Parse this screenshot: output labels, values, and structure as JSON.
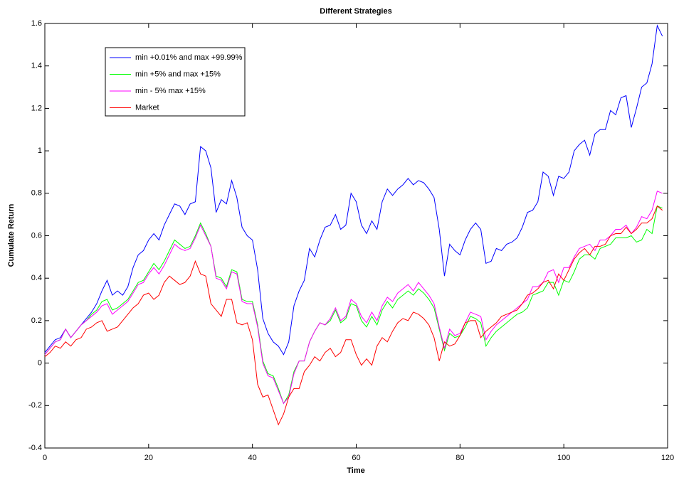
{
  "chart_data": {
    "type": "line",
    "title": "Different Strategies",
    "x_label": "Time",
    "y_label": "Cumulate Return",
    "x": [
      0,
      1,
      2,
      3,
      4,
      5,
      6,
      7,
      8,
      9,
      10,
      11,
      12,
      13,
      14,
      15,
      16,
      17,
      18,
      19,
      20,
      21,
      22,
      23,
      24,
      25,
      26,
      27,
      28,
      29,
      30,
      31,
      32,
      33,
      34,
      35,
      36,
      37,
      38,
      39,
      40,
      41,
      42,
      43,
      44,
      45,
      46,
      47,
      48,
      49,
      50,
      51,
      52,
      53,
      54,
      55,
      56,
      57,
      58,
      59,
      60,
      61,
      62,
      63,
      64,
      65,
      66,
      67,
      68,
      69,
      70,
      71,
      72,
      73,
      74,
      75,
      76,
      77,
      78,
      79,
      80,
      81,
      82,
      83,
      84,
      85,
      86,
      87,
      88,
      89,
      90,
      91,
      92,
      93,
      94,
      95,
      96,
      97,
      98,
      99,
      100,
      101,
      102,
      103,
      104,
      105,
      106,
      107,
      108,
      109,
      110,
      111,
      112,
      113,
      114,
      115,
      116,
      117,
      118,
      119
    ],
    "series": [
      {
        "name": "min +0.01% and max +99.99%",
        "color": "#0000ff",
        "values": [
          0.05,
          0.08,
          0.11,
          0.12,
          0.16,
          0.12,
          0.15,
          0.18,
          0.21,
          0.24,
          0.28,
          0.34,
          0.39,
          0.32,
          0.34,
          0.32,
          0.36,
          0.45,
          0.51,
          0.53,
          0.58,
          0.61,
          0.58,
          0.65,
          0.7,
          0.75,
          0.74,
          0.7,
          0.75,
          0.76,
          1.02,
          1.0,
          0.92,
          0.71,
          0.77,
          0.75,
          0.86,
          0.78,
          0.64,
          0.6,
          0.58,
          0.44,
          0.21,
          0.14,
          0.1,
          0.08,
          0.04,
          0.1,
          0.27,
          0.34,
          0.39,
          0.54,
          0.5,
          0.58,
          0.64,
          0.65,
          0.7,
          0.63,
          0.65,
          0.8,
          0.76,
          0.65,
          0.61,
          0.67,
          0.63,
          0.76,
          0.82,
          0.79,
          0.82,
          0.84,
          0.87,
          0.84,
          0.86,
          0.85,
          0.82,
          0.78,
          0.63,
          0.41,
          0.56,
          0.53,
          0.51,
          0.58,
          0.63,
          0.66,
          0.63,
          0.47,
          0.48,
          0.54,
          0.53,
          0.56,
          0.57,
          0.59,
          0.64,
          0.71,
          0.72,
          0.76,
          0.9,
          0.88,
          0.79,
          0.88,
          0.87,
          0.9,
          1.0,
          1.03,
          1.05,
          0.98,
          1.08,
          1.1,
          1.1,
          1.19,
          1.17,
          1.25,
          1.26,
          1.11,
          1.2,
          1.3,
          1.32,
          1.41,
          1.59,
          1.54
        ]
      },
      {
        "name": "min +5% and max +15%",
        "color": "#00ff00",
        "values": [
          0.04,
          0.07,
          0.1,
          0.11,
          0.16,
          0.12,
          0.15,
          0.18,
          0.2,
          0.23,
          0.25,
          0.29,
          0.3,
          0.25,
          0.26,
          0.28,
          0.3,
          0.34,
          0.38,
          0.39,
          0.43,
          0.47,
          0.44,
          0.48,
          0.53,
          0.58,
          0.56,
          0.54,
          0.55,
          0.6,
          0.66,
          0.61,
          0.55,
          0.41,
          0.4,
          0.36,
          0.44,
          0.43,
          0.3,
          0.29,
          0.29,
          0.18,
          0.01,
          -0.05,
          -0.06,
          -0.12,
          -0.19,
          -0.15,
          -0.04,
          0.01,
          0.01,
          0.1,
          0.15,
          0.19,
          0.18,
          0.2,
          0.25,
          0.19,
          0.21,
          0.28,
          0.27,
          0.2,
          0.17,
          0.22,
          0.18,
          0.25,
          0.29,
          0.26,
          0.3,
          0.32,
          0.34,
          0.32,
          0.35,
          0.33,
          0.3,
          0.26,
          0.16,
          0.06,
          0.14,
          0.12,
          0.13,
          0.17,
          0.22,
          0.21,
          0.19,
          0.08,
          0.12,
          0.15,
          0.17,
          0.19,
          0.21,
          0.23,
          0.24,
          0.26,
          0.32,
          0.33,
          0.34,
          0.38,
          0.38,
          0.32,
          0.39,
          0.38,
          0.43,
          0.49,
          0.51,
          0.51,
          0.49,
          0.54,
          0.55,
          0.56,
          0.59,
          0.59,
          0.59,
          0.6,
          0.57,
          0.58,
          0.63,
          0.61,
          0.74,
          0.73
        ]
      },
      {
        "name": "min - 5% max +15%",
        "color": "#ff00ff",
        "values": [
          0.04,
          0.07,
          0.1,
          0.11,
          0.16,
          0.12,
          0.15,
          0.18,
          0.2,
          0.22,
          0.24,
          0.27,
          0.28,
          0.23,
          0.25,
          0.27,
          0.29,
          0.33,
          0.37,
          0.38,
          0.42,
          0.45,
          0.42,
          0.46,
          0.51,
          0.56,
          0.54,
          0.53,
          0.54,
          0.59,
          0.65,
          0.6,
          0.55,
          0.4,
          0.39,
          0.35,
          0.43,
          0.42,
          0.29,
          0.28,
          0.28,
          0.17,
          0.0,
          -0.06,
          -0.07,
          -0.13,
          -0.19,
          -0.16,
          -0.05,
          0.01,
          0.01,
          0.1,
          0.15,
          0.19,
          0.18,
          0.21,
          0.26,
          0.2,
          0.22,
          0.3,
          0.28,
          0.22,
          0.19,
          0.24,
          0.2,
          0.27,
          0.31,
          0.29,
          0.33,
          0.35,
          0.37,
          0.34,
          0.38,
          0.35,
          0.32,
          0.28,
          0.17,
          0.07,
          0.16,
          0.13,
          0.14,
          0.19,
          0.24,
          0.23,
          0.22,
          0.11,
          0.15,
          0.18,
          0.2,
          0.22,
          0.24,
          0.26,
          0.28,
          0.3,
          0.36,
          0.36,
          0.38,
          0.43,
          0.44,
          0.38,
          0.45,
          0.45,
          0.5,
          0.54,
          0.55,
          0.56,
          0.53,
          0.58,
          0.58,
          0.6,
          0.63,
          0.63,
          0.65,
          0.61,
          0.64,
          0.69,
          0.68,
          0.72,
          0.81,
          0.8
        ]
      },
      {
        "name": "Market",
        "color": "#ff0000",
        "values": [
          0.03,
          0.05,
          0.08,
          0.07,
          0.1,
          0.08,
          0.11,
          0.12,
          0.16,
          0.17,
          0.19,
          0.2,
          0.15,
          0.16,
          0.17,
          0.2,
          0.23,
          0.26,
          0.28,
          0.32,
          0.33,
          0.3,
          0.32,
          0.38,
          0.41,
          0.39,
          0.37,
          0.38,
          0.41,
          0.48,
          0.42,
          0.41,
          0.28,
          0.25,
          0.22,
          0.3,
          0.3,
          0.19,
          0.18,
          0.19,
          0.11,
          -0.1,
          -0.16,
          -0.15,
          -0.22,
          -0.29,
          -0.24,
          -0.16,
          -0.12,
          -0.12,
          -0.04,
          -0.01,
          0.03,
          0.01,
          0.05,
          0.07,
          0.03,
          0.05,
          0.11,
          0.11,
          0.04,
          -0.01,
          0.02,
          -0.01,
          0.08,
          0.12,
          0.1,
          0.15,
          0.19,
          0.21,
          0.2,
          0.24,
          0.23,
          0.21,
          0.18,
          0.12,
          0.01,
          0.1,
          0.08,
          0.09,
          0.13,
          0.19,
          0.2,
          0.2,
          0.12,
          0.15,
          0.17,
          0.19,
          0.22,
          0.23,
          0.24,
          0.25,
          0.28,
          0.32,
          0.33,
          0.35,
          0.38,
          0.39,
          0.35,
          0.42,
          0.39,
          0.44,
          0.49,
          0.52,
          0.54,
          0.51,
          0.55,
          0.55,
          0.56,
          0.6,
          0.61,
          0.61,
          0.64,
          0.61,
          0.63,
          0.66,
          0.66,
          0.68,
          0.74,
          0.72
        ]
      }
    ],
    "xlim": [
      0,
      120
    ],
    "xticks": [
      0,
      20,
      40,
      60,
      80,
      100,
      120
    ],
    "ylim": [
      -0.4,
      1.6
    ],
    "yticks": [
      -0.4,
      -0.2,
      0,
      0.2,
      0.4,
      0.6,
      0.8,
      1,
      1.2,
      1.4,
      1.6
    ],
    "grid": false,
    "legend": "upper left"
  }
}
